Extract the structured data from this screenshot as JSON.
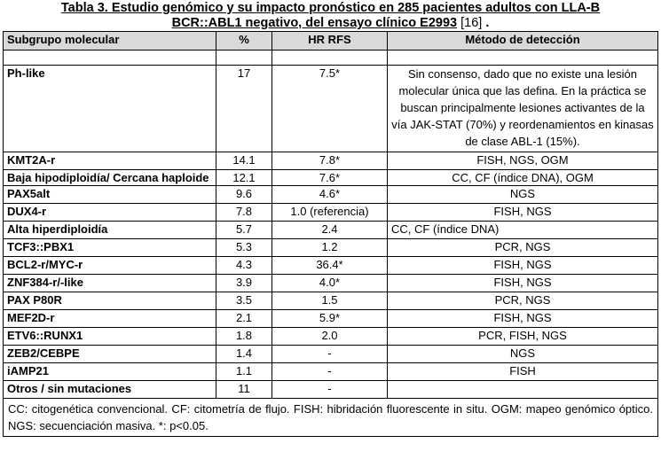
{
  "caption": {
    "label": "Tabla 3.",
    "title_line1": " Estudio genómico y su impacto pronóstico en 285 pacientes adultos con LLA-B",
    "title_line2": "BCR::ABL1 negativo, del ensayo clínico E2993",
    "reference": "[16]",
    "end": " ."
  },
  "headers": {
    "subgroup": "Subgrupo molecular",
    "percent": "%",
    "hr": "HR RFS",
    "method": "Método de detección"
  },
  "rows": [
    {
      "name": "Ph-like",
      "pct": "17",
      "hr": "7.5*",
      "method": "Sin consenso, dado que no existe una lesión molecular única que las defina. En la práctica se buscan principalmente lesiones activantes de la vía JAK-STAT (70%) y reordenamientos en kinasas de clase ABL-1 (15%)."
    },
    {
      "name": "KMT2A-r",
      "pct": "14.1",
      "hr": "7.8*",
      "method": "FISH, NGS, OGM"
    },
    {
      "name": "Baja hipodiploidía/ Cercana haploide",
      "pct": "12.1",
      "hr": "7.6*",
      "method": "CC, CF (índice DNA), OGM"
    },
    {
      "name": "PAX5alt",
      "pct": "9.6",
      "hr": "4.6*",
      "method": "NGS"
    },
    {
      "name": "DUX4-r",
      "pct": "7.8",
      "hr": "1.0 (referencia)",
      "method": "FISH, NGS"
    },
    {
      "name": "Alta hiperdiploidía",
      "pct": "5.7",
      "hr": "2.4",
      "method": "CC, CF (índice DNA)"
    },
    {
      "name": "TCF3::PBX1",
      "pct": "5.3",
      "hr": "1.2",
      "method": "PCR, NGS"
    },
    {
      "name": "BCL2-r/MYC-r",
      "pct": "4.3",
      "hr": "36.4*",
      "method": "FISH, NGS"
    },
    {
      "name": "ZNF384-r/-like",
      "pct": "3.9",
      "hr": "4.0*",
      "method": "FISH, NGS"
    },
    {
      "name": "PAX P80R",
      "pct": "3.5",
      "hr": "1.5",
      "method": "PCR, NGS"
    },
    {
      "name": "MEF2D-r",
      "pct": "2.1",
      "hr": "5.9*",
      "method": "FISH, NGS"
    },
    {
      "name": "ETV6::RUNX1",
      "pct": "1.8",
      "hr": "2.0",
      "method": "PCR, FISH, NGS"
    },
    {
      "name": "ZEB2/CEBPE",
      "pct": "1.4",
      "hr": "-",
      "method": "NGS"
    },
    {
      "name": "iAMP21",
      "pct": "1.1",
      "hr": "-",
      "method": "FISH"
    },
    {
      "name": "Otros / sin mutaciones",
      "pct": "11",
      "hr": "-",
      "method": ""
    }
  ],
  "footnote": "CC: citogenética convencional. CF: citometría de flujo. FISH: hibridación fluorescente in situ. OGM: mapeo genómico óptico. NGS: secuenciación masiva. *: p<0.05."
}
